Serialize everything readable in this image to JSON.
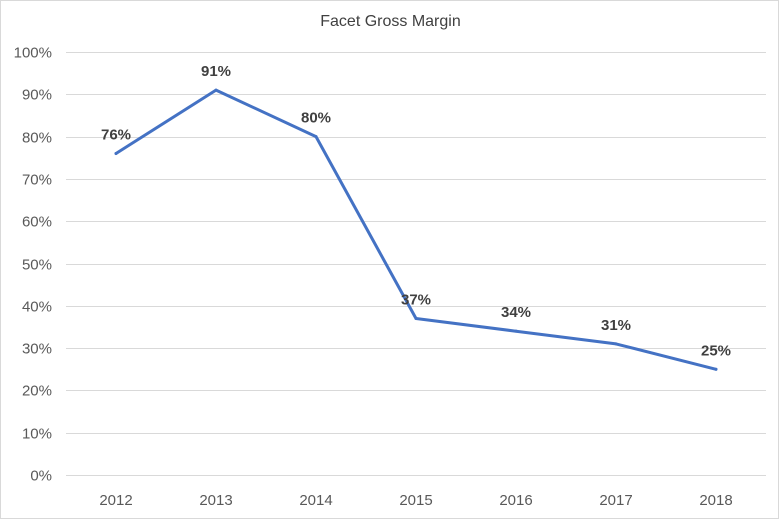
{
  "chart_data": {
    "type": "line",
    "title": "Facet Gross Margin",
    "xlabel": "",
    "ylabel": "",
    "categories": [
      "2012",
      "2013",
      "2014",
      "2015",
      "2016",
      "2017",
      "2018"
    ],
    "series": [
      {
        "values": [
          76,
          91,
          80,
          37,
          34,
          31,
          25
        ],
        "data_labels": [
          "76%",
          "91%",
          "80%",
          "37%",
          "34%",
          "31%",
          "25%"
        ],
        "color": "#4472c4"
      }
    ],
    "ylim": [
      0,
      100
    ],
    "yticks": [
      0,
      10,
      20,
      30,
      40,
      50,
      60,
      70,
      80,
      90,
      100
    ],
    "ytick_labels": [
      "0%",
      "10%",
      "20%",
      "30%",
      "40%",
      "50%",
      "60%",
      "70%",
      "80%",
      "90%",
      "100%"
    ],
    "grid": true,
    "legend": "none",
    "gridline_color": "#d9d9d9"
  }
}
